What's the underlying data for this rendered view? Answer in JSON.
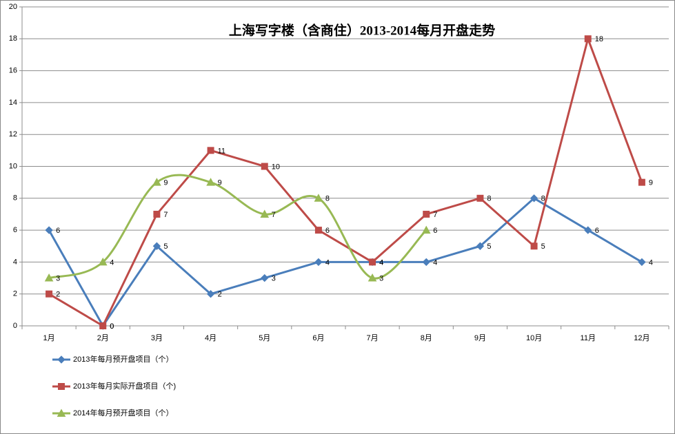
{
  "chart_data": {
    "type": "line",
    "title": "上海写字楼（含商住）2013-2014每月开盘走势",
    "categories": [
      "1月",
      "2月",
      "3月",
      "4月",
      "5月",
      "6月",
      "7月",
      "8月",
      "9月",
      "10月",
      "11月",
      "12月"
    ],
    "series": [
      {
        "name": "2013年每月预开盘项目（个）",
        "color": "#4a7ebb",
        "marker": "diamond",
        "smooth": false,
        "values": [
          6,
          0,
          5,
          2,
          3,
          4,
          4,
          4,
          5,
          8,
          6,
          4
        ]
      },
      {
        "name": "2013年每月实际开盘项目（个)",
        "color": "#be4b48",
        "marker": "square",
        "smooth": false,
        "values": [
          2,
          0,
          7,
          11,
          10,
          6,
          4,
          7,
          8,
          5,
          18,
          9
        ]
      },
      {
        "name": "2014年每月预开盘项目（个）",
        "color": "#98b954",
        "marker": "triangle",
        "smooth": true,
        "values": [
          3,
          4,
          9,
          9,
          7,
          8,
          3,
          6,
          null,
          null,
          null,
          null
        ]
      }
    ],
    "ylim": [
      0,
      20
    ],
    "yticks": [
      0,
      2,
      4,
      6,
      8,
      10,
      12,
      14,
      16,
      18,
      20
    ],
    "grid": true,
    "legend": "bottom-left",
    "data_labels": true
  }
}
